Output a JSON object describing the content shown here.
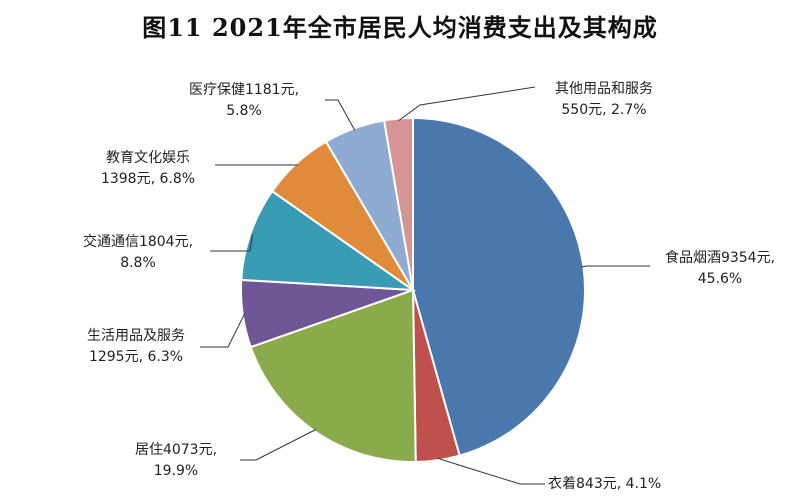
{
  "chart_data": {
    "type": "pie",
    "title": "图11  2021年全市居民人均消费支出及其构成",
    "slices": [
      {
        "name": "食品烟酒",
        "value": 9354,
        "percent": 45.6,
        "color": "#4a78ad",
        "line1": "食品烟酒9354元,",
        "line2": "45.6%"
      },
      {
        "name": "衣着",
        "value": 843,
        "percent": 4.1,
        "color": "#c0504d",
        "line1": "衣着843元, 4.1%",
        "line2": ""
      },
      {
        "name": "居住",
        "value": 4073,
        "percent": 19.9,
        "color": "#8aab4b",
        "line1": "居住4073元,",
        "line2": "19.9%"
      },
      {
        "name": "生活用品及服务",
        "value": 1295,
        "percent": 6.3,
        "color": "#6f5696",
        "line1": "生活用品及服务",
        "line2": "1295元, 6.3%"
      },
      {
        "name": "交通通信",
        "value": 1804,
        "percent": 8.8,
        "color": "#3a9cb4",
        "line1": "交通通信1804元,",
        "line2": "8.8%"
      },
      {
        "name": "教育文化娱乐",
        "value": 1398,
        "percent": 6.8,
        "color": "#e08a3c",
        "line1": "教育文化娱乐",
        "line2": "1398元, 6.8%"
      },
      {
        "name": "医疗保健",
        "value": 1181,
        "percent": 5.8,
        "color": "#90abd2",
        "line1": "医疗保健1181元,",
        "line2": "5.8%"
      },
      {
        "name": "其他用品和服务",
        "value": 550,
        "percent": 2.7,
        "color": "#d59594",
        "line1": "其他用品和服务",
        "line2": "550元, 2.7%"
      }
    ]
  }
}
